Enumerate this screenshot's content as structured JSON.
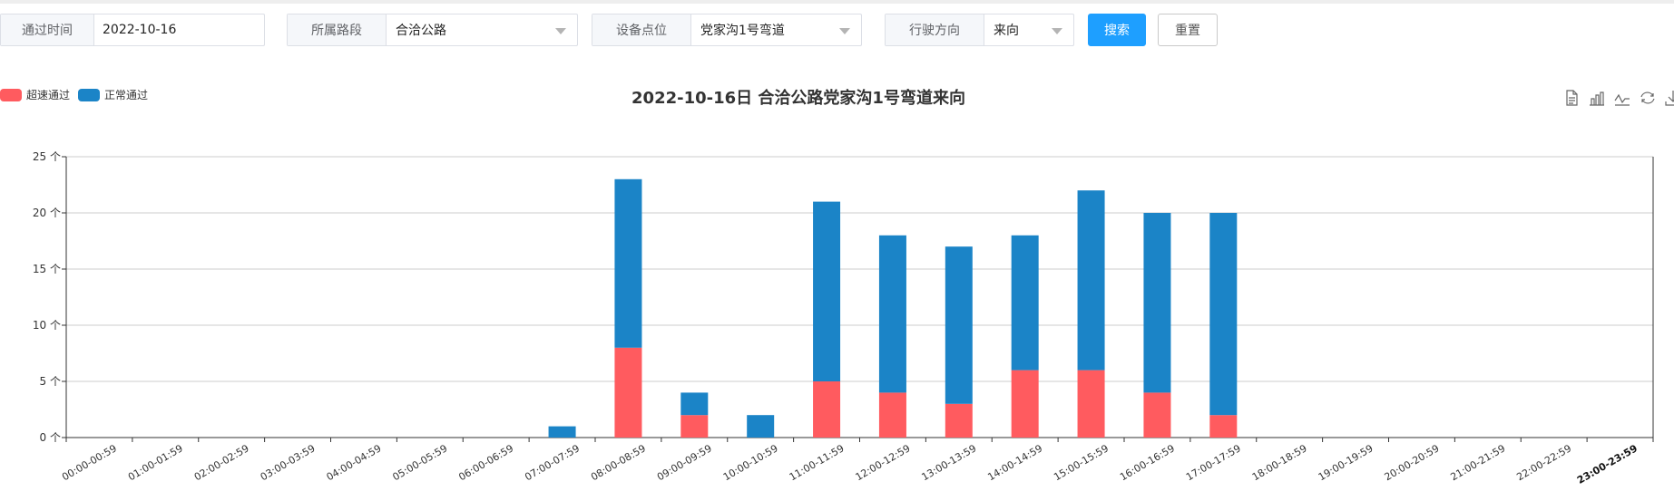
{
  "filters": {
    "date": {
      "label": "通过时间",
      "value": "2022-10-16"
    },
    "road": {
      "label": "所属路段",
      "value": "合洽公路"
    },
    "device": {
      "label": "设备点位",
      "value": "党家沟1号弯道"
    },
    "direction": {
      "label": "行驶方向",
      "value": "来向"
    },
    "search_label": "搜索",
    "reset_label": "重置"
  },
  "colors": {
    "over": "#ff5b5f",
    "normal": "#1b84c7",
    "primary": "#1e9fff"
  },
  "toolbox": [
    "data-view-icon",
    "bar-chart-icon",
    "line-chart-icon",
    "restore-icon",
    "download-icon"
  ],
  "chart_data": {
    "type": "bar",
    "stacked": true,
    "title": "2022-10-16日 合洽公路党家沟1号弯道来向",
    "xlabel": "",
    "ylabel": "",
    "ylim": [
      0,
      25
    ],
    "yticks": [
      "0 个",
      "5 个",
      "10 个",
      "15 个",
      "20 个",
      "25 个"
    ],
    "grid": true,
    "legend_position": "top-left",
    "categories": [
      "00:00-00:59",
      "01:00-01:59",
      "02:00-02:59",
      "03:00-03:59",
      "04:00-04:59",
      "05:00-05:59",
      "06:00-06:59",
      "07:00-07:59",
      "08:00-08:59",
      "09:00-09:59",
      "10:00-10:59",
      "11:00-11:59",
      "12:00-12:59",
      "13:00-13:59",
      "14:00-14:59",
      "15:00-15:59",
      "16:00-16:59",
      "17:00-17:59",
      "18:00-18:59",
      "19:00-19:59",
      "20:00-20:59",
      "21:00-21:59",
      "22:00-22:59",
      "23:00-23:59"
    ],
    "series": [
      {
        "name": "超速通过",
        "color": "#ff5b5f",
        "values": [
          0,
          0,
          0,
          0,
          0,
          0,
          0,
          0,
          8,
          2,
          0,
          5,
          4,
          3,
          6,
          6,
          4,
          2,
          0,
          0,
          0,
          0,
          0,
          0
        ]
      },
      {
        "name": "正常通过",
        "color": "#1b84c7",
        "values": [
          0,
          0,
          0,
          0,
          0,
          0,
          0,
          1,
          15,
          2,
          2,
          16,
          14,
          14,
          12,
          16,
          16,
          18,
          0,
          0,
          0,
          0,
          0,
          0
        ]
      }
    ]
  }
}
